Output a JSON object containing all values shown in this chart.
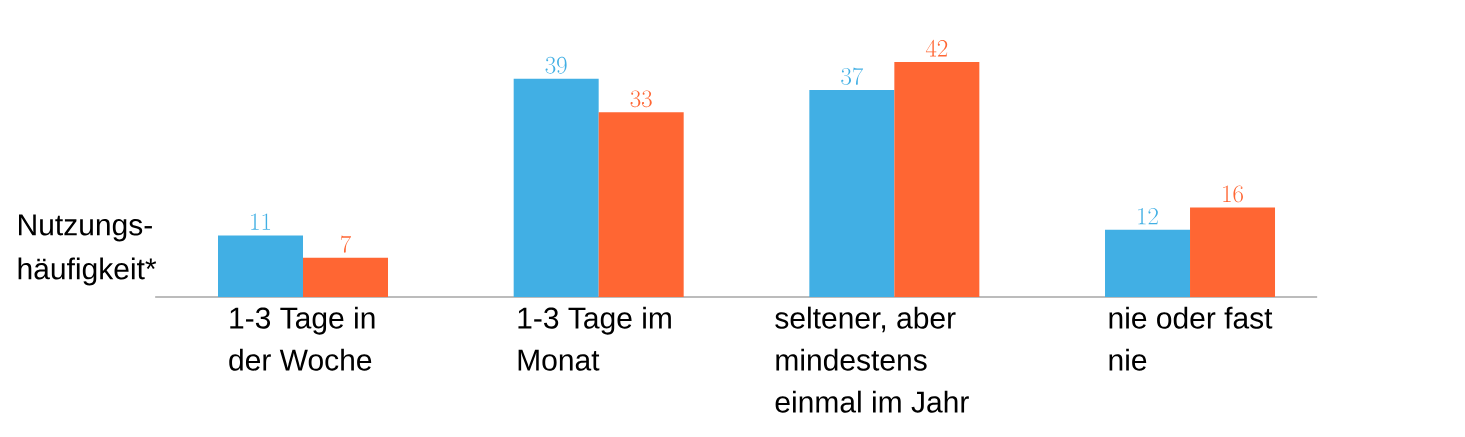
{
  "chart_data": {
    "type": "bar",
    "ylabel": "Nutzungs-häufigkeit*",
    "categories": [
      "1-3 Tage in der Woche",
      "1-3 Tage im Monat",
      "seltener, aber mindestens einmal im Jahr",
      "nie oder fast nie"
    ],
    "series": [
      {
        "color": "#41afe4",
        "values": [
          11,
          39,
          37,
          12
        ]
      },
      {
        "color": "#ff6633",
        "values": [
          7,
          33,
          42,
          16
        ]
      }
    ],
    "ylim": [
      0,
      42
    ],
    "data_labels": true
  }
}
